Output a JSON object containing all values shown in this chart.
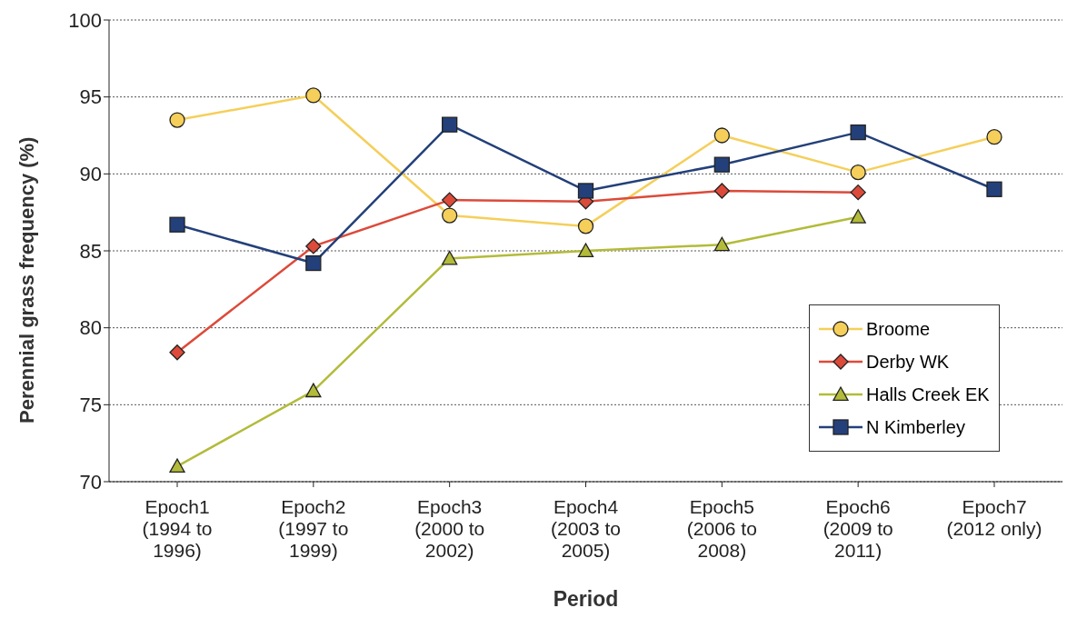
{
  "chart_data": {
    "type": "line",
    "xlabel": "Period",
    "ylabel": "Perennial grass frequency (%)",
    "categories": [
      "Epoch1\n(1994 to\n1996)",
      "Epoch2\n(1997 to\n1999)",
      "Epoch3\n(2000 to\n2002)",
      "Epoch4\n(2003 to\n2005)",
      "Epoch5\n(2006 to\n2008)",
      "Epoch6\n(2009 to\n2011)",
      "Epoch7\n(2012 only)"
    ],
    "series": [
      {
        "name": "Broome",
        "color": "#f5cf5a",
        "marker": "circle",
        "values": [
          93.5,
          95.1,
          87.3,
          86.6,
          92.5,
          90.1,
          92.4
        ]
      },
      {
        "name": "Derby WK",
        "color": "#dc4a3a",
        "marker": "diamond",
        "values": [
          78.4,
          85.3,
          88.3,
          88.2,
          88.9,
          88.8,
          null
        ]
      },
      {
        "name": "Halls Creek EK",
        "color": "#b3bb3a",
        "marker": "triangle",
        "values": [
          71.0,
          75.9,
          84.5,
          85.0,
          85.4,
          87.2,
          null
        ]
      },
      {
        "name": "N Kimberley",
        "color": "#23407a",
        "marker": "square",
        "values": [
          86.7,
          84.2,
          93.2,
          88.9,
          90.6,
          92.7,
          89.0
        ]
      }
    ],
    "ylim": [
      70,
      100
    ],
    "yticks": [
      70,
      75,
      80,
      85,
      90,
      95,
      100
    ],
    "grid": "y",
    "legend": "bottom right",
    "line_style": "solid"
  }
}
